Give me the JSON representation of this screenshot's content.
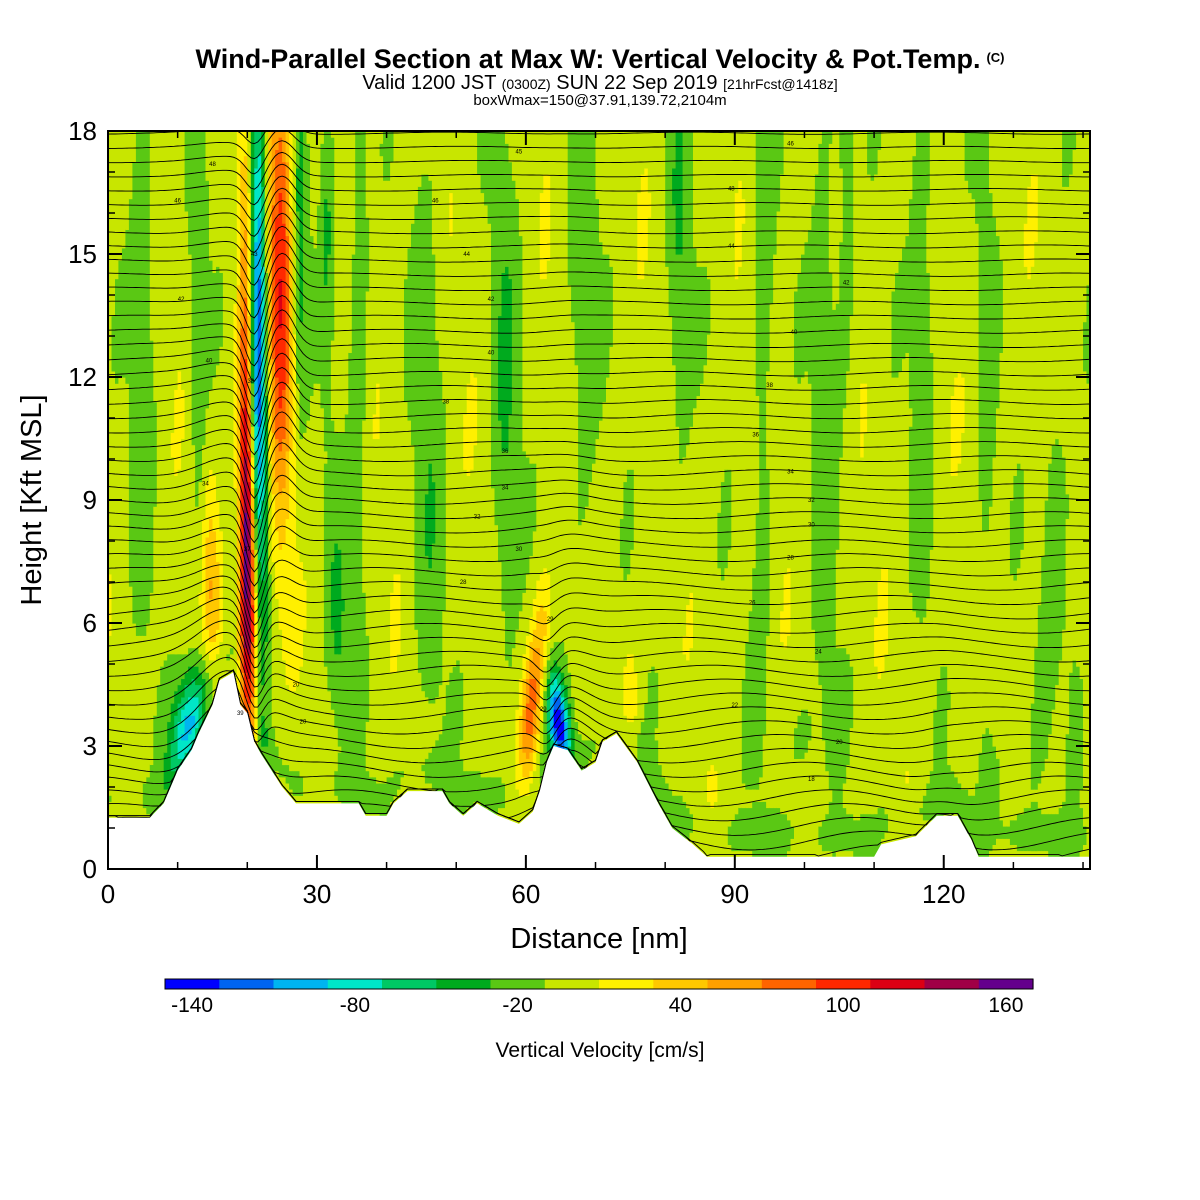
{
  "titles": {
    "main": "Wind-Parallel Section at Max W: Vertical Velocity & Pot.Temp.",
    "main_tag": "(C)",
    "valid_prefix": "Valid 1200 JST",
    "valid_utc": "(0300Z)",
    "valid_date": "SUN 22 Sep 2019",
    "valid_fcst": "[21hrFcst@1418z]",
    "box_info": "boxWmax=150@37.91,139.72,2104m"
  },
  "chart_data": {
    "type": "heatmap",
    "xlabel": "Distance [nm]",
    "ylabel": "Height [Kft MSL]",
    "xlim": [
      0,
      141
    ],
    "ylim": [
      0,
      18
    ],
    "x_ticks": [
      0,
      30,
      60,
      90,
      120
    ],
    "y_ticks": [
      0,
      3,
      6,
      9,
      12,
      15,
      18
    ],
    "colorbar": {
      "title": "Vertical Velocity [cm/s]",
      "labels": [
        "-140",
        "-80",
        "-20",
        "40",
        "100",
        "160"
      ],
      "label_values": [
        -140,
        -80,
        -20,
        40,
        100,
        160
      ],
      "levels": [
        -150,
        -130,
        -110,
        -90,
        -70,
        -50,
        -30,
        -10,
        10,
        30,
        50,
        70,
        90,
        110,
        130,
        150,
        170
      ],
      "colors": [
        "#0000ff",
        "#0064f0",
        "#00b4f0",
        "#00e6c8",
        "#00c864",
        "#00aa1e",
        "#5ac814",
        "#c8e600",
        "#fff000",
        "#ffc800",
        "#ffa000",
        "#ff6400",
        "#ff2800",
        "#dc0014",
        "#a00046",
        "#64008c"
      ]
    },
    "terrain_kft": [
      [
        0,
        1.25
      ],
      [
        6,
        1.25
      ],
      [
        8,
        1.6
      ],
      [
        10,
        2.4
      ],
      [
        12,
        2.9
      ],
      [
        13,
        3.3
      ],
      [
        15,
        4.0
      ],
      [
        16,
        4.6
      ],
      [
        18,
        4.8
      ],
      [
        19,
        4.0
      ],
      [
        20,
        3.8
      ],
      [
        21,
        3.1
      ],
      [
        22,
        2.8
      ],
      [
        25,
        2.0
      ],
      [
        27,
        1.6
      ],
      [
        36,
        1.6
      ],
      [
        37,
        1.3
      ],
      [
        40,
        1.3
      ],
      [
        41,
        1.6
      ],
      [
        43,
        1.9
      ],
      [
        48,
        1.9
      ],
      [
        49,
        1.6
      ],
      [
        51,
        1.3
      ],
      [
        53,
        1.6
      ],
      [
        56,
        1.3
      ],
      [
        59,
        1.1
      ],
      [
        61,
        1.4
      ],
      [
        62,
        1.9
      ],
      [
        63,
        2.6
      ],
      [
        64,
        3.0
      ],
      [
        66,
        2.9
      ],
      [
        68,
        2.4
      ],
      [
        70,
        2.6
      ],
      [
        71,
        3.1
      ],
      [
        73,
        3.3
      ],
      [
        76,
        2.6
      ],
      [
        79,
        1.6
      ],
      [
        81,
        1.0
      ],
      [
        84,
        0.6
      ],
      [
        86,
        0.3
      ],
      [
        110,
        0.3
      ],
      [
        111,
        0.6
      ],
      [
        116,
        0.8
      ],
      [
        119,
        1.3
      ],
      [
        122,
        1.3
      ],
      [
        123,
        1.0
      ],
      [
        124,
        0.7
      ],
      [
        125,
        0.3
      ],
      [
        141,
        0.3
      ]
    ],
    "wmax_features": [
      {
        "x": 20.5,
        "z_kft": 7.0,
        "w_cm_s": 150
      },
      {
        "x": 21.5,
        "z_kft": 12.5,
        "w_cm_s": -140
      },
      {
        "x": 26.0,
        "z_kft": 14.5,
        "w_cm_s": 110
      },
      {
        "x": 12.0,
        "z_kft": 3.5,
        "w_cm_s": -90
      },
      {
        "x": 61.0,
        "z_kft": 3.5,
        "w_cm_s": 80
      },
      {
        "x": 64.5,
        "z_kft": 3.4,
        "w_cm_s": -130
      }
    ],
    "contour_labels": [
      {
        "x": 15,
        "y": 17.2,
        "text": "48"
      },
      {
        "x": 10,
        "y": 16.3,
        "text": "46"
      },
      {
        "x": 59,
        "y": 17.5,
        "text": "45"
      },
      {
        "x": 47,
        "y": 16.3,
        "text": "46"
      },
      {
        "x": 51.5,
        "y": 15.0,
        "text": "44"
      },
      {
        "x": 89.5,
        "y": 16.6,
        "text": "48"
      },
      {
        "x": 89.5,
        "y": 15.2,
        "text": "44"
      },
      {
        "x": 98,
        "y": 17.7,
        "text": "46"
      },
      {
        "x": 10.5,
        "y": 13.9,
        "text": "42"
      },
      {
        "x": 55,
        "y": 13.9,
        "text": "42"
      },
      {
        "x": 106,
        "y": 14.3,
        "text": "42"
      },
      {
        "x": 14.5,
        "y": 12.4,
        "text": "40"
      },
      {
        "x": 55,
        "y": 12.6,
        "text": "40"
      },
      {
        "x": 98.5,
        "y": 13.1,
        "text": "40"
      },
      {
        "x": 48.5,
        "y": 11.4,
        "text": "38"
      },
      {
        "x": 95,
        "y": 11.8,
        "text": "38"
      },
      {
        "x": 57,
        "y": 10.2,
        "text": "36"
      },
      {
        "x": 93,
        "y": 10.6,
        "text": "36"
      },
      {
        "x": 14,
        "y": 9.4,
        "text": "34"
      },
      {
        "x": 57,
        "y": 9.3,
        "text": "34"
      },
      {
        "x": 98,
        "y": 9.7,
        "text": "34"
      },
      {
        "x": 53,
        "y": 8.6,
        "text": "32"
      },
      {
        "x": 101,
        "y": 9.0,
        "text": "32"
      },
      {
        "x": 101,
        "y": 8.4,
        "text": "30"
      },
      {
        "x": 59,
        "y": 7.8,
        "text": "30"
      },
      {
        "x": 98,
        "y": 7.6,
        "text": "28"
      },
      {
        "x": 51,
        "y": 7.0,
        "text": "28"
      },
      {
        "x": 92.5,
        "y": 6.5,
        "text": "26"
      },
      {
        "x": 102,
        "y": 5.3,
        "text": "24"
      },
      {
        "x": 27,
        "y": 4.5,
        "text": "20"
      },
      {
        "x": 28,
        "y": 3.6,
        "text": "20"
      },
      {
        "x": 90,
        "y": 4.0,
        "text": "22"
      },
      {
        "x": 105,
        "y": 3.1,
        "text": "20"
      },
      {
        "x": 101,
        "y": 2.2,
        "text": "18"
      },
      {
        "x": 19,
        "y": 3.8,
        "text": "39"
      },
      {
        "x": 20,
        "y": 7.8,
        "text": "37"
      },
      {
        "x": 20.5,
        "y": 11.9,
        "text": "38"
      },
      {
        "x": 21,
        "y": 15.0,
        "text": "43"
      },
      {
        "x": 63.5,
        "y": 6.1,
        "text": "29"
      },
      {
        "x": 62.5,
        "y": 3.9,
        "text": "29"
      }
    ]
  }
}
